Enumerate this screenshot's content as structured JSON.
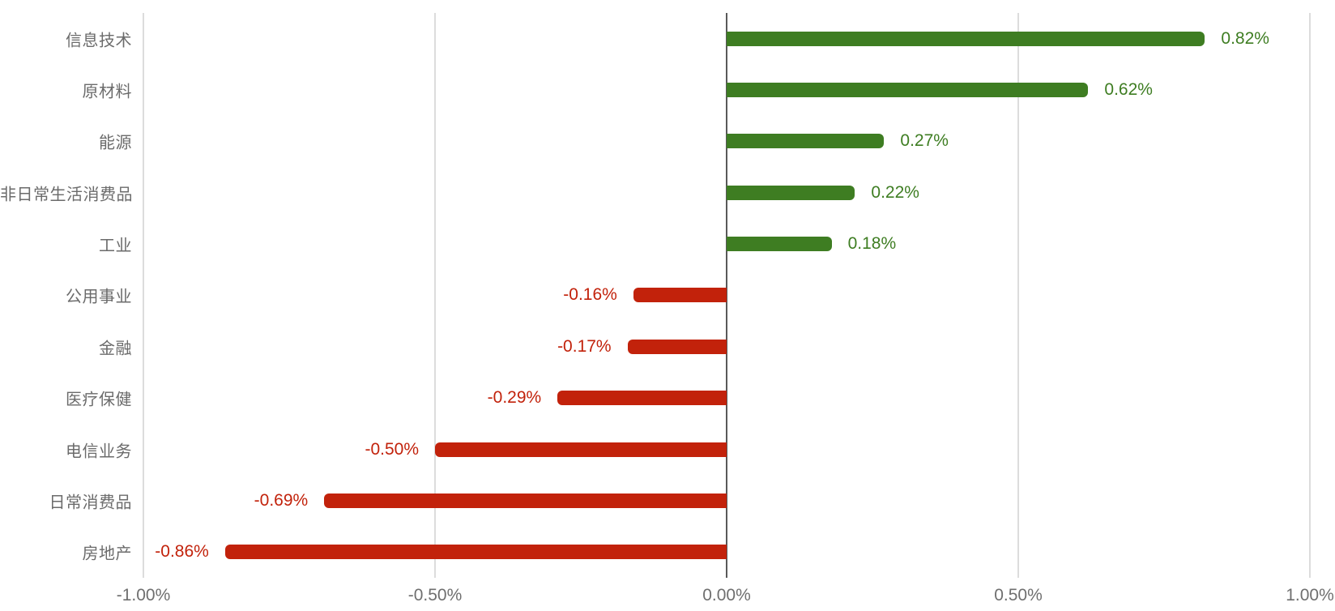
{
  "chart_data": {
    "type": "bar",
    "orientation": "horizontal",
    "title": "",
    "xlabel": "",
    "ylabel": "",
    "categories": [
      "信息技术",
      "原材料",
      "能源",
      "非日常生活消费品",
      "工业",
      "公用事业",
      "金融",
      "医疗保健",
      "电信业务",
      "日常消费品",
      "房地产"
    ],
    "values": [
      0.82,
      0.62,
      0.27,
      0.22,
      0.18,
      -0.16,
      -0.17,
      -0.29,
      -0.5,
      -0.69,
      -0.86
    ],
    "value_labels": [
      "0.82%",
      "0.62%",
      "0.27%",
      "0.22%",
      "0.18%",
      "-0.16%",
      "-0.17%",
      "-0.29%",
      "-0.50%",
      "-0.69%",
      "-0.86%"
    ],
    "xlim": [
      -1.0,
      1.0
    ],
    "x_tick_values": [
      -1.0,
      -0.5,
      0.0,
      0.5,
      1.0
    ],
    "x_ticks": [
      "-1.00%",
      "-0.50%",
      "0.00%",
      "0.50%",
      "1.00%"
    ],
    "grid": true,
    "legend": false,
    "colors": {
      "positive": "#3e7d22",
      "negative": "#c2220b",
      "gridline": "#dcdcdc",
      "zero_axis": "#595959",
      "category_label": "#6b6b6b",
      "tick_label": "#6f6f6f",
      "background": "#ffffff"
    }
  }
}
